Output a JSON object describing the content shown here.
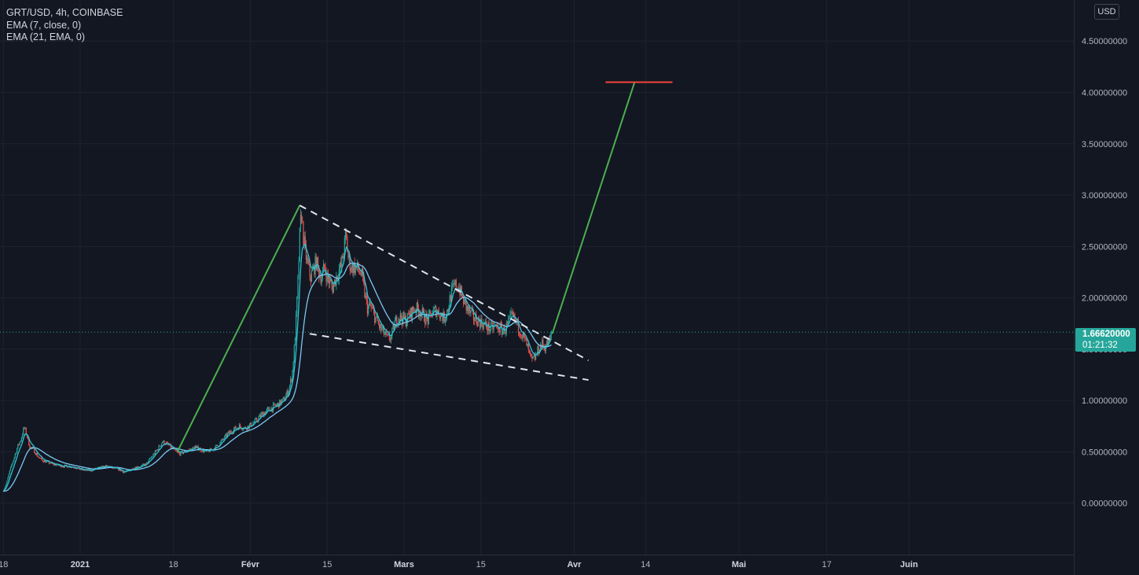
{
  "legend": {
    "symbol": "GRT/USD, 4h, COINBASE",
    "ema1": "EMA (7, close, 0)",
    "ema2": "EMA (21, EMA, 0)"
  },
  "currency_label": "USD",
  "last_price": {
    "price": "1.66620000",
    "countdown": "01:21:32"
  },
  "chart_data": {
    "type": "candlestick",
    "symbol": "GRT/USD",
    "interval": "4h",
    "exchange": "COINBASE",
    "y_axis": {
      "range": [
        -0.5,
        4.9
      ],
      "ticks": [
        {
          "value": 0.0,
          "label": "0.00000000"
        },
        {
          "value": 0.5,
          "label": "0.50000000"
        },
        {
          "value": 1.0,
          "label": "1.00000000"
        },
        {
          "value": 1.5,
          "label": "1.50000000"
        },
        {
          "value": 2.0,
          "label": "2.00000000"
        },
        {
          "value": 2.5,
          "label": "2.50000000"
        },
        {
          "value": 3.0,
          "label": "3.00000000"
        },
        {
          "value": 3.5,
          "label": "3.50000000"
        },
        {
          "value": 4.0,
          "label": "4.00000000"
        },
        {
          "value": 4.5,
          "label": "4.50000000"
        }
      ]
    },
    "x_axis": {
      "range_days": [
        -0.6,
        195
      ],
      "ticks": [
        {
          "day": 0,
          "label": "18",
          "bold": false
        },
        {
          "day": 14,
          "label": "2021",
          "bold": true
        },
        {
          "day": 31,
          "label": "18",
          "bold": false
        },
        {
          "day": 45,
          "label": "Févr",
          "bold": true
        },
        {
          "day": 59,
          "label": "15",
          "bold": false
        },
        {
          "day": 73,
          "label": "Mars",
          "bold": true
        },
        {
          "day": 87,
          "label": "15",
          "bold": false
        },
        {
          "day": 104,
          "label": "Avr",
          "bold": true
        },
        {
          "day": 117,
          "label": "14",
          "bold": false
        },
        {
          "day": 134,
          "label": "Mai",
          "bold": true
        },
        {
          "day": 150,
          "label": "17",
          "bold": false
        },
        {
          "day": 165,
          "label": "Juin",
          "bold": true
        }
      ]
    },
    "price_path": [
      [
        0,
        0.12
      ],
      [
        0.6,
        0.2
      ],
      [
        1.2,
        0.32
      ],
      [
        2,
        0.45
      ],
      [
        2.6,
        0.55
      ],
      [
        3.2,
        0.62
      ],
      [
        3.8,
        0.74
      ],
      [
        4.3,
        0.66
      ],
      [
        4.8,
        0.55
      ],
      [
        5.5,
        0.52
      ],
      [
        6.2,
        0.46
      ],
      [
        7,
        0.42
      ],
      [
        8,
        0.4
      ],
      [
        9,
        0.38
      ],
      [
        10,
        0.37
      ],
      [
        11,
        0.36
      ],
      [
        12,
        0.36
      ],
      [
        13,
        0.35
      ],
      [
        14,
        0.33
      ],
      [
        15,
        0.32
      ],
      [
        16,
        0.32
      ],
      [
        17,
        0.34
      ],
      [
        18,
        0.35
      ],
      [
        19,
        0.36
      ],
      [
        20,
        0.34
      ],
      [
        21,
        0.33
      ],
      [
        22,
        0.3
      ],
      [
        23,
        0.32
      ],
      [
        24,
        0.35
      ],
      [
        25,
        0.36
      ],
      [
        26,
        0.38
      ],
      [
        27,
        0.45
      ],
      [
        28,
        0.52
      ],
      [
        29,
        0.6
      ],
      [
        30,
        0.57
      ],
      [
        31,
        0.52
      ],
      [
        32,
        0.48
      ],
      [
        33,
        0.5
      ],
      [
        34,
        0.52
      ],
      [
        35,
        0.55
      ],
      [
        36,
        0.52
      ],
      [
        37,
        0.5
      ],
      [
        38,
        0.52
      ],
      [
        39,
        0.56
      ],
      [
        40,
        0.62
      ],
      [
        41,
        0.68
      ],
      [
        42,
        0.72
      ],
      [
        43,
        0.75
      ],
      [
        44,
        0.73
      ],
      [
        45,
        0.76
      ],
      [
        46,
        0.8
      ],
      [
        47,
        0.86
      ],
      [
        48,
        0.9
      ],
      [
        49,
        0.93
      ],
      [
        50,
        0.96
      ],
      [
        51,
        1.0
      ],
      [
        52,
        1.1
      ],
      [
        52.6,
        1.25
      ],
      [
        53,
        1.5
      ],
      [
        53.4,
        1.85
      ],
      [
        53.7,
        2.2
      ],
      [
        54,
        2.6
      ],
      [
        54.3,
        2.85
      ],
      [
        54.6,
        2.62
      ],
      [
        55,
        2.45
      ],
      [
        55.5,
        2.3
      ],
      [
        56,
        2.2
      ],
      [
        56.5,
        2.28
      ],
      [
        57,
        2.35
      ],
      [
        57.5,
        2.25
      ],
      [
        58,
        2.2
      ],
      [
        58.5,
        2.3
      ],
      [
        59,
        2.2
      ],
      [
        59.5,
        2.15
      ],
      [
        60,
        2.1
      ],
      [
        60.5,
        2.18
      ],
      [
        61,
        2.25
      ],
      [
        61.5,
        2.3
      ],
      [
        62,
        2.45
      ],
      [
        62.4,
        2.62
      ],
      [
        62.8,
        2.4
      ],
      [
        63.3,
        2.3
      ],
      [
        64,
        2.3
      ],
      [
        64.6,
        2.28
      ],
      [
        65.3,
        2.22
      ],
      [
        65.8,
        2.05
      ],
      [
        66.3,
        1.9
      ],
      [
        66.8,
        1.92
      ],
      [
        67.4,
        1.85
      ],
      [
        68,
        1.78
      ],
      [
        68.7,
        1.7
      ],
      [
        69.4,
        1.65
      ],
      [
        70,
        1.6
      ],
      [
        70.7,
        1.62
      ],
      [
        71.3,
        1.75
      ],
      [
        72,
        1.82
      ],
      [
        72.7,
        1.8
      ],
      [
        73.4,
        1.78
      ],
      [
        74.2,
        1.85
      ],
      [
        75,
        1.9
      ],
      [
        75.8,
        1.88
      ],
      [
        76.6,
        1.82
      ],
      [
        77.4,
        1.78
      ],
      [
        78,
        1.85
      ],
      [
        78.8,
        1.88
      ],
      [
        79.5,
        1.85
      ],
      [
        80.3,
        1.8
      ],
      [
        81,
        1.9
      ],
      [
        81.6,
        2.05
      ],
      [
        82.3,
        2.12
      ],
      [
        83,
        2.1
      ],
      [
        83.6,
        2.0
      ],
      [
        84.2,
        1.92
      ],
      [
        85,
        1.85
      ],
      [
        85.8,
        1.8
      ],
      [
        86.5,
        1.78
      ],
      [
        87.3,
        1.75
      ],
      [
        88,
        1.72
      ],
      [
        88.8,
        1.7
      ],
      [
        89.6,
        1.72
      ],
      [
        90.4,
        1.7
      ],
      [
        91.2,
        1.68
      ],
      [
        92,
        1.75
      ],
      [
        92.6,
        1.82
      ],
      [
        93.2,
        1.78
      ],
      [
        94,
        1.7
      ],
      [
        94.7,
        1.62
      ],
      [
        95.3,
        1.55
      ],
      [
        95.8,
        1.45
      ],
      [
        96.3,
        1.38
      ],
      [
        96.9,
        1.42
      ],
      [
        97.5,
        1.5
      ],
      [
        98.1,
        1.55
      ],
      [
        98.6,
        1.52
      ],
      [
        99.2,
        1.56
      ],
      [
        99.6,
        1.6
      ],
      [
        100,
        1.67
      ]
    ],
    "current_price": 1.6662,
    "annotations": {
      "pole_line": {
        "color": "#4caf50",
        "points": [
          [
            31.7,
            0.5
          ],
          [
            54.0,
            2.9
          ]
        ]
      },
      "projection_line": {
        "color": "#4caf50",
        "points": [
          [
            100.0,
            1.65
          ],
          [
            115.0,
            4.1
          ]
        ]
      },
      "target_level": {
        "color": "#f44336",
        "value": 4.1,
        "from_day": 109.7,
        "to_day": 121.9
      },
      "upper_trendline": {
        "color": "#e0e3eb",
        "style": "dashed",
        "points": [
          [
            54.0,
            2.9
          ],
          [
            106.6,
            1.39
          ]
        ]
      },
      "lower_trendline": {
        "color": "#e0e3eb",
        "style": "dashed",
        "points": [
          [
            55.8,
            1.65
          ],
          [
            106.6,
            1.2
          ]
        ]
      }
    },
    "colors": {
      "up": "#26a69a",
      "down": "#ef5350",
      "ema7": "#2ec4d6",
      "ema21": "#7cc8f2",
      "grid": "#1f2330",
      "background": "#131722"
    },
    "grid": true
  }
}
